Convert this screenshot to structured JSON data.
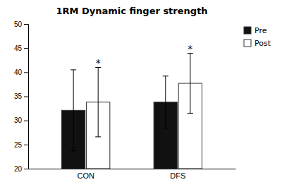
{
  "chart_data": {
    "type": "bar",
    "title": "1RM Dynamic finger strength",
    "categories": [
      "CON",
      "DFS"
    ],
    "series": [
      {
        "name": "Pre",
        "color": "#111111",
        "values": [
          32.1,
          33.8
        ],
        "errors": [
          8.4,
          5.4
        ]
      },
      {
        "name": "Post",
        "color": "#ffffff",
        "values": [
          33.8,
          37.7
        ],
        "errors": [
          7.2,
          6.2
        ]
      }
    ],
    "annotations": [
      {
        "text": "*",
        "category": "CON",
        "series": "Post"
      },
      {
        "text": "*",
        "category": "DFS",
        "series": "Post"
      }
    ],
    "ylim": [
      20,
      50
    ],
    "yticks": [
      20,
      25,
      30,
      35,
      40,
      45,
      50
    ],
    "legend": "upper right"
  }
}
